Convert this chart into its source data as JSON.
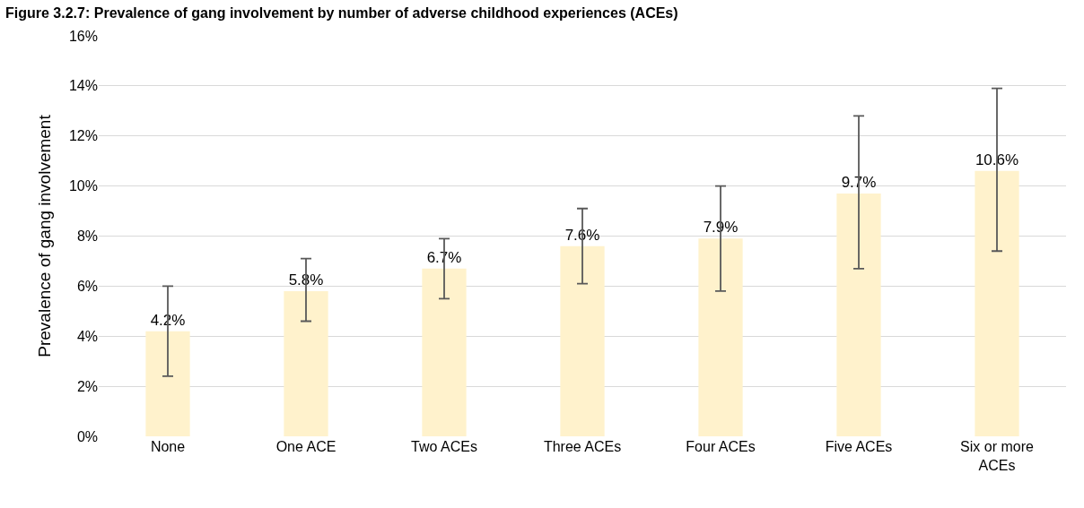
{
  "chart_data": {
    "type": "bar",
    "title": "Figure 3.2.7: Prevalence of gang involvement by number of adverse childhood experiences (ACEs)",
    "ylabel": "Prevalence of gang involvement",
    "categories": [
      "None",
      "One ACE",
      "Two ACEs",
      "Three ACEs",
      "Four ACEs",
      "Five ACEs",
      "Six or more ACEs"
    ],
    "values": [
      4.2,
      5.8,
      6.7,
      7.6,
      7.9,
      9.7,
      10.6
    ],
    "value_labels": [
      "4.2%",
      "5.8%",
      "6.7%",
      "7.6%",
      "7.9%",
      "9.7%",
      "10.6%"
    ],
    "errors": [
      [
        2.4,
        6.0
      ],
      [
        4.6,
        7.1
      ],
      [
        5.5,
        7.9
      ],
      [
        6.1,
        9.1
      ],
      [
        5.8,
        10.0
      ],
      [
        6.7,
        12.8
      ],
      [
        7.4,
        13.9
      ]
    ],
    "color": "#fff2cc",
    "ylim": [
      0,
      16
    ],
    "yticks": [
      {
        "value": 0,
        "label": "0%"
      },
      {
        "value": 2,
        "label": "2%"
      },
      {
        "value": 4,
        "label": "4%"
      },
      {
        "value": 6,
        "label": "6%"
      },
      {
        "value": 8,
        "label": "8%"
      },
      {
        "value": 10,
        "label": "10%"
      },
      {
        "value": 12,
        "label": "12%"
      },
      {
        "value": 14,
        "label": "14%"
      },
      {
        "value": 16,
        "label": "16%"
      }
    ],
    "grid": "y",
    "legend": false
  }
}
